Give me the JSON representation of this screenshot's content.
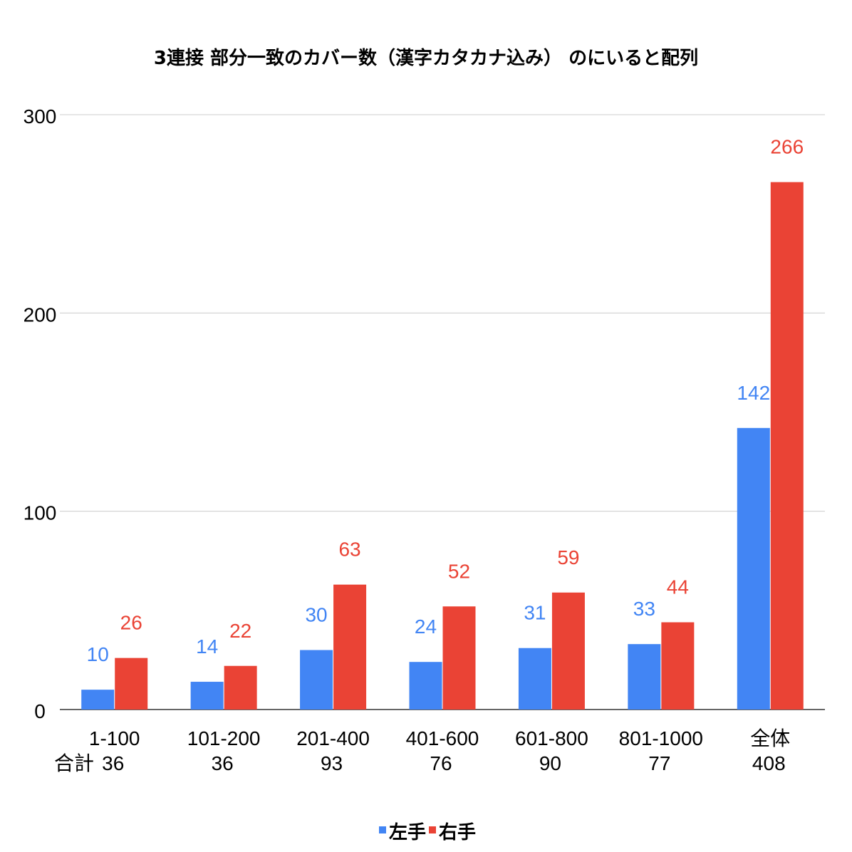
{
  "chart_data": {
    "type": "bar",
    "title": "3連接 部分一致のカバー数（漢字カタカナ込み） のにいると配列",
    "categories": [
      "1-100",
      "101-200",
      "201-400",
      "401-600",
      "601-800",
      "801-1000",
      "全体"
    ],
    "totals_label": "合計",
    "totals": [
      "36",
      "36",
      "93",
      "76",
      "90",
      "77",
      "408"
    ],
    "series": [
      {
        "name": "左手",
        "color": "#4285f4",
        "values": [
          10,
          14,
          30,
          24,
          31,
          33,
          142
        ]
      },
      {
        "name": "右手",
        "color": "#ea4335",
        "values": [
          26,
          22,
          63,
          52,
          59,
          44,
          266
        ]
      }
    ],
    "ylim": [
      0,
      300
    ],
    "yticks": [
      "0",
      "100",
      "200",
      "300"
    ],
    "grid": true,
    "legend_position": "bottom"
  }
}
